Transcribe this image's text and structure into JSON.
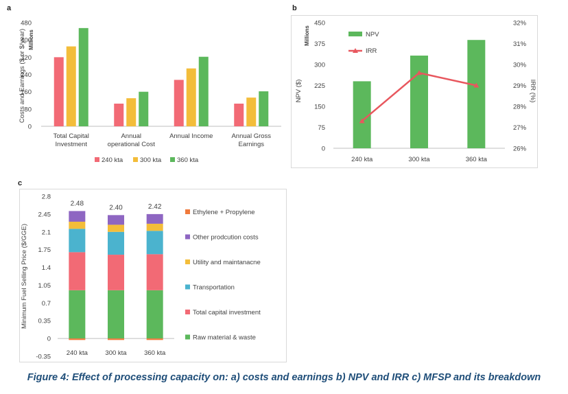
{
  "panels": {
    "a": "a",
    "b": "b",
    "c": "c"
  },
  "caption": "Figure 4: Effect of processing capacity on: a) costs and earnings b) NPV and IRR c) MFSP and its breakdown",
  "colors": {
    "kta240": "#f26a75",
    "kta300": "#f3bd3a",
    "kta360": "#5cb85c",
    "npv": "#5cb85c",
    "irr": "#e8575e",
    "ethylene": "#f07a3c",
    "other": "#8e66c2",
    "utility": "#f3bd3a",
    "transport": "#4bb3ce",
    "capital": "#f26a75",
    "raw": "#5cb85c",
    "axis": "#bfbfbf",
    "grid": "#e3e3e3"
  },
  "chart_data": [
    {
      "type": "bar",
      "panel": "a",
      "categories": [
        "Total Capital\nInvestment",
        "Annual\noperational Cost",
        "Annual Income",
        "Annual Gross\nEarnings"
      ],
      "series": [
        {
          "name": "240 kta",
          "values": [
            320,
            105,
            215,
            105
          ]
        },
        {
          "name": "300 kta",
          "values": [
            370,
            130,
            268,
            133
          ]
        },
        {
          "name": "360 kta",
          "values": [
            455,
            160,
            322,
            162
          ]
        }
      ],
      "ylabel": "Costs and Earnings ($ or $/year)",
      "yunit": "Millions",
      "ylim": [
        0,
        480
      ],
      "yticks": [
        0,
        80,
        160,
        240,
        320,
        400,
        480
      ],
      "legend": "bottom",
      "grid": false
    },
    {
      "type": "bar",
      "panel": "b",
      "categories": [
        "240 kta",
        "300 kta",
        "360 kta"
      ],
      "series": [
        {
          "name": "NPV",
          "type": "bar",
          "axis": "left",
          "values": [
            240,
            332,
            388
          ]
        },
        {
          "name": "IRR",
          "type": "line",
          "axis": "right",
          "values": [
            27.3,
            29.6,
            29.0
          ]
        }
      ],
      "ylabel": "NPV ($)",
      "yunit": "Millions",
      "ylim": [
        0,
        450
      ],
      "yticks": [
        0,
        75,
        150,
        225,
        300,
        375,
        450
      ],
      "y2label": "IRR (%)",
      "y2lim": [
        26,
        32
      ],
      "y2ticks": [
        "26%",
        "27%",
        "28%",
        "29%",
        "30%",
        "31%",
        "32%"
      ],
      "legend": "top-left",
      "grid": false
    },
    {
      "type": "bar",
      "stacked": true,
      "panel": "c",
      "categories": [
        "240 kta",
        "300 kta",
        "360 kta"
      ],
      "totals": [
        "2.48",
        "2.40",
        "2.42"
      ],
      "series": [
        {
          "name": "Raw material & waste",
          "values": [
            0.95,
            0.95,
            0.95
          ]
        },
        {
          "name": "Total capital investment",
          "values": [
            0.75,
            0.7,
            0.71
          ]
        },
        {
          "name": "Transportation",
          "values": [
            0.46,
            0.45,
            0.46
          ]
        },
        {
          "name": "Utility and maintanacne",
          "values": [
            0.14,
            0.14,
            0.14
          ]
        },
        {
          "name": "Other prodcution costs",
          "values": [
            0.21,
            0.19,
            0.19
          ]
        },
        {
          "name": "Ethylene + Propylene",
          "values": [
            -0.03,
            -0.03,
            -0.03
          ]
        }
      ],
      "legend_order": [
        "Ethylene + Propylene",
        "Other prodcution costs",
        "Utility and maintanacne",
        "Transportation",
        "Total capital investment",
        "Raw material & waste"
      ],
      "ylabel": "Minimum Fuel Selling Price ($/GGE)",
      "ylim": [
        -0.35,
        2.8
      ],
      "yticks": [
        "-0.35",
        "0",
        "0.35",
        "0.7",
        "1.05",
        "1.4",
        "1.75",
        "2.1",
        "2.45",
        "2.8"
      ],
      "legend": "right",
      "grid": false
    }
  ]
}
